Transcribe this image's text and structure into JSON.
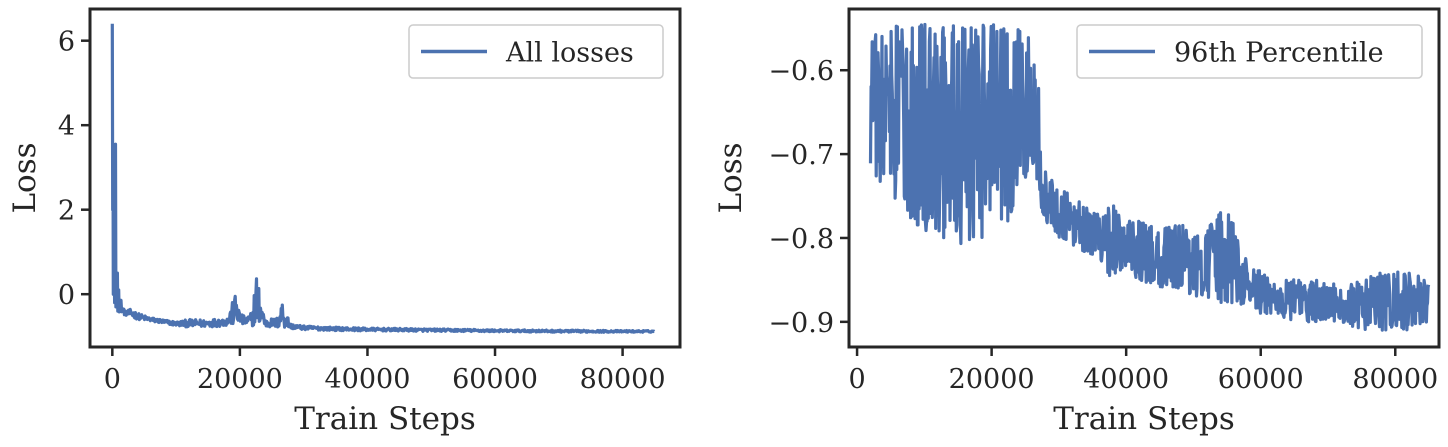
{
  "colors": {
    "series": "#4c72b0",
    "axes": "#262626",
    "legend_border": "#cccccc",
    "background": "#ffffff"
  },
  "chart_data": [
    {
      "type": "line",
      "xlabel": "Train Steps",
      "ylabel": "Loss",
      "xlim": [
        -3500,
        89000
      ],
      "ylim": [
        -1.25,
        6.75
      ],
      "xticks": [
        0,
        20000,
        40000,
        60000,
        80000
      ],
      "xtick_labels": [
        "0",
        "20000",
        "40000",
        "60000",
        "80000"
      ],
      "yticks": [
        0,
        2,
        4,
        6
      ],
      "ytick_labels": [
        "0",
        "2",
        "4",
        "6"
      ],
      "grid": false,
      "legend_position": "top-right",
      "series": [
        {
          "name": "All losses",
          "color": "#4c72b0",
          "x": [
            0,
            100,
            300,
            500,
            800,
            1000,
            1500,
            2000,
            3000,
            4000,
            5000,
            6000,
            8000,
            10000,
            12000,
            15000,
            18000,
            19500,
            20000,
            21000,
            22000,
            22500,
            24000,
            26000,
            26500,
            28000,
            30000,
            35000,
            40000,
            50000,
            60000,
            70000,
            80000,
            85000
          ],
          "values": [
            6.4,
            3.5,
            1.2,
            3.55,
            0.5,
            0.1,
            -0.2,
            -0.4,
            -0.35,
            -0.45,
            -0.5,
            -0.55,
            -0.6,
            -0.65,
            -0.6,
            -0.6,
            -0.55,
            0.1,
            -0.45,
            -0.55,
            -0.4,
            0.6,
            -0.6,
            -0.55,
            -0.1,
            -0.7,
            -0.75,
            -0.78,
            -0.8,
            -0.82,
            -0.84,
            -0.85,
            -0.86,
            -0.86
          ],
          "band_low": [
            2.0,
            0.0,
            -0.2,
            -0.3,
            -0.4,
            -0.42,
            -0.45,
            -0.5,
            -0.55,
            -0.6,
            -0.62,
            -0.65,
            -0.7,
            -0.75,
            -0.78,
            -0.78,
            -0.75,
            -0.75,
            -0.72,
            -0.75,
            -0.75,
            -0.78,
            -0.78,
            -0.8,
            -0.8,
            -0.82,
            -0.84,
            -0.86,
            -0.87,
            -0.88,
            -0.89,
            -0.9,
            -0.9,
            -0.9
          ]
        }
      ]
    },
    {
      "type": "line",
      "xlabel": "Train Steps",
      "ylabel": "Loss",
      "xlim": [
        -1200,
        86500
      ],
      "ylim": [
        -0.93,
        -0.527
      ],
      "xticks": [
        0,
        20000,
        40000,
        60000,
        80000
      ],
      "xtick_labels": [
        "0",
        "20000",
        "40000",
        "60000",
        "80000"
      ],
      "yticks": [
        -0.9,
        -0.8,
        -0.7,
        -0.6
      ],
      "ytick_labels": [
        "−0.9",
        "−0.8",
        "−0.7",
        "−0.6"
      ],
      "grid": false,
      "legend_position": "top-right",
      "series": [
        {
          "name": "96th Percentile",
          "color": "#4c72b0",
          "x": [
            2000,
            4000,
            6000,
            8000,
            10000,
            12000,
            14000,
            16000,
            18000,
            20000,
            22000,
            24000,
            26000,
            27000,
            28000,
            30000,
            32000,
            35000,
            38000,
            40000,
            42000,
            45000,
            48000,
            50000,
            52000,
            55000,
            58000,
            60000,
            62000,
            65000,
            68000,
            70000,
            72000,
            75000,
            78000,
            80000,
            82000,
            85000
          ],
          "upper": [
            -0.545,
            -0.545,
            -0.545,
            -0.55,
            -0.545,
            -0.55,
            -0.545,
            -0.55,
            -0.545,
            -0.545,
            -0.545,
            -0.545,
            -0.545,
            -0.6,
            -0.72,
            -0.74,
            -0.75,
            -0.77,
            -0.76,
            -0.78,
            -0.78,
            -0.79,
            -0.78,
            -0.8,
            -0.79,
            -0.76,
            -0.83,
            -0.84,
            -0.85,
            -0.85,
            -0.85,
            -0.85,
            -0.86,
            -0.85,
            -0.84,
            -0.84,
            -0.84,
            -0.85
          ],
          "lower": [
            -0.72,
            -0.74,
            -0.76,
            -0.78,
            -0.79,
            -0.8,
            -0.8,
            -0.81,
            -0.8,
            -0.8,
            -0.79,
            -0.76,
            -0.74,
            -0.76,
            -0.78,
            -0.8,
            -0.81,
            -0.82,
            -0.85,
            -0.84,
            -0.85,
            -0.86,
            -0.86,
            -0.87,
            -0.87,
            -0.88,
            -0.88,
            -0.89,
            -0.89,
            -0.9,
            -0.9,
            -0.9,
            -0.9,
            -0.91,
            -0.91,
            -0.91,
            -0.91,
            -0.9
          ]
        }
      ]
    }
  ]
}
